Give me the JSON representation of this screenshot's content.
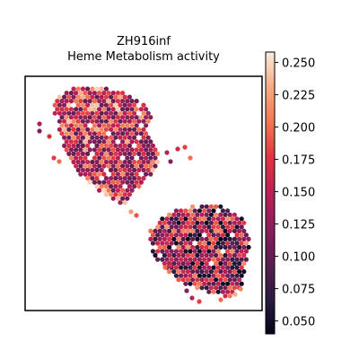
{
  "chart_data": {
    "type": "heatmap",
    "subtype": "spatial hexbin scatter",
    "title_line1": "ZH916inf",
    "title_line2": "Heme Metabolism activity",
    "xlabel": "",
    "ylabel": "",
    "grid": false,
    "axes_ticks": false,
    "colorbar": {
      "colormap": "rocket",
      "range": [
        0.04,
        0.258
      ],
      "ticks": [
        0.05,
        0.075,
        0.1,
        0.125,
        0.15,
        0.175,
        0.2,
        0.225,
        0.25
      ],
      "tick_labels": [
        "0.050",
        "0.075",
        "0.100",
        "0.125",
        "0.150",
        "0.175",
        "0.200",
        "0.225",
        "0.250"
      ]
    },
    "tissue_regions": [
      {
        "name": "upper-left section",
        "approx_value_range": [
          0.1,
          0.25
        ],
        "dominant_value": 0.15
      },
      {
        "name": "lower-right section",
        "approx_value_range": [
          0.04,
          0.22
        ],
        "dominant_value": 0.12
      }
    ]
  },
  "colors": {
    "colormap_stops": [
      "#03051a",
      "#2b1c40",
      "#5b1e51",
      "#8b1f5a",
      "#bc1e55",
      "#e13342",
      "#f37651",
      "#f6ab84",
      "#faebdd"
    ],
    "frame": "#000000",
    "background": "#ffffff"
  }
}
